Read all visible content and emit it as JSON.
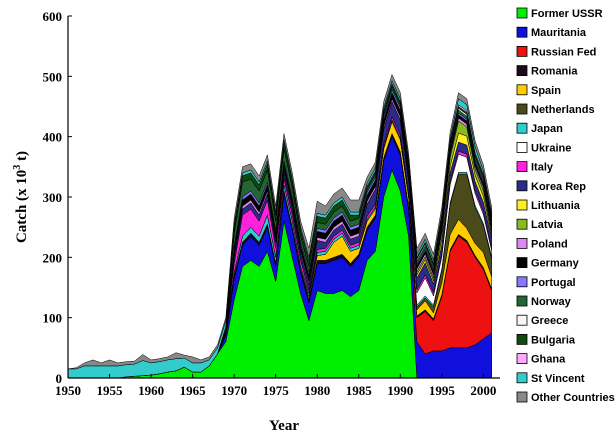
{
  "chart_data": {
    "type": "area",
    "stacked": true,
    "title": "",
    "xlabel": "Year",
    "ylabel": "Catch (x 10",
    "ylabel_sup": "3",
    "ylabel_tail": " t)",
    "xlim": [
      1950,
      2002
    ],
    "ylim": [
      0,
      600
    ],
    "xticks": [
      1950,
      1955,
      1960,
      1965,
      1970,
      1975,
      1980,
      1985,
      1990,
      1995,
      2000
    ],
    "yticks": [
      0,
      100,
      200,
      300,
      400,
      500,
      600
    ],
    "grid": false,
    "legend_position": "right",
    "x": [
      1950,
      1951,
      1952,
      1953,
      1954,
      1955,
      1956,
      1957,
      1958,
      1959,
      1960,
      1961,
      1962,
      1963,
      1964,
      1965,
      1966,
      1967,
      1968,
      1969,
      1970,
      1971,
      1972,
      1973,
      1974,
      1975,
      1976,
      1977,
      1978,
      1979,
      1980,
      1981,
      1982,
      1983,
      1984,
      1985,
      1986,
      1987,
      1988,
      1989,
      1990,
      1991,
      1992,
      1993,
      1994,
      1995,
      1996,
      1997,
      1998,
      1999,
      2000,
      2001
    ],
    "series": [
      {
        "name": "Former USSR",
        "color": "#00ee00",
        "values": [
          0,
          0,
          0,
          0,
          0,
          0,
          0,
          2,
          3,
          4,
          5,
          7,
          10,
          12,
          18,
          10,
          10,
          20,
          40,
          60,
          130,
          185,
          195,
          185,
          210,
          160,
          260,
          200,
          140,
          95,
          145,
          140,
          140,
          145,
          135,
          145,
          195,
          210,
          300,
          345,
          310,
          235,
          0,
          0,
          0,
          0,
          0,
          0,
          0,
          0,
          0,
          0
        ]
      },
      {
        "name": "Mauritania",
        "color": "#1010dd",
        "values": [
          0,
          0,
          0,
          0,
          0,
          0,
          0,
          0,
          0,
          0,
          0,
          0,
          0,
          0,
          0,
          0,
          0,
          0,
          0,
          10,
          35,
          35,
          40,
          35,
          40,
          25,
          45,
          45,
          35,
          30,
          45,
          50,
          55,
          55,
          50,
          55,
          50,
          55,
          60,
          55,
          60,
          45,
          60,
          40,
          45,
          45,
          50,
          50,
          50,
          55,
          65,
          75
        ]
      },
      {
        "name": "Russian Fed",
        "color": "#ee1111",
        "values": [
          0,
          0,
          0,
          0,
          0,
          0,
          0,
          0,
          0,
          0,
          0,
          0,
          0,
          0,
          0,
          0,
          0,
          0,
          0,
          0,
          0,
          0,
          0,
          0,
          0,
          0,
          0,
          0,
          0,
          0,
          0,
          0,
          0,
          0,
          0,
          0,
          0,
          0,
          0,
          0,
          0,
          0,
          40,
          70,
          50,
          90,
          160,
          185,
          175,
          145,
          115,
          70
        ]
      },
      {
        "name": "Romania",
        "color": "#1a0a1a",
        "values": [
          0,
          0,
          0,
          0,
          0,
          0,
          0,
          0,
          0,
          0,
          0,
          0,
          0,
          0,
          0,
          0,
          0,
          0,
          0,
          5,
          5,
          5,
          5,
          5,
          5,
          5,
          5,
          5,
          5,
          5,
          5,
          5,
          5,
          5,
          5,
          5,
          5,
          5,
          5,
          5,
          5,
          5,
          3,
          3,
          3,
          3,
          3,
          3,
          3,
          3,
          3,
          3
        ]
      },
      {
        "name": "Spain",
        "color": "#ffcc00",
        "values": [
          0,
          0,
          0,
          0,
          0,
          0,
          0,
          0,
          0,
          0,
          0,
          0,
          0,
          0,
          0,
          0,
          0,
          0,
          0,
          0,
          0,
          0,
          0,
          0,
          0,
          0,
          0,
          0,
          0,
          5,
          8,
          10,
          25,
          30,
          20,
          10,
          10,
          10,
          15,
          20,
          20,
          15,
          10,
          15,
          10,
          20,
          25,
          25,
          20,
          20,
          25,
          20
        ]
      },
      {
        "name": "Netherlands",
        "color": "#4a4a1a",
        "values": [
          0,
          0,
          0,
          0,
          0,
          0,
          0,
          0,
          0,
          0,
          0,
          0,
          0,
          0,
          0,
          0,
          0,
          0,
          0,
          0,
          0,
          0,
          0,
          0,
          0,
          0,
          0,
          0,
          0,
          0,
          0,
          0,
          0,
          0,
          0,
          0,
          0,
          0,
          0,
          0,
          0,
          0,
          5,
          5,
          10,
          20,
          50,
          75,
          90,
          60,
          45,
          30
        ]
      },
      {
        "name": "Japan",
        "color": "#33cccc",
        "values": [
          0,
          0,
          0,
          0,
          0,
          0,
          0,
          0,
          0,
          0,
          0,
          0,
          0,
          0,
          0,
          0,
          0,
          0,
          0,
          0,
          5,
          10,
          10,
          10,
          15,
          10,
          10,
          10,
          5,
          5,
          5,
          5,
          5,
          5,
          5,
          5,
          3,
          3,
          3,
          3,
          3,
          3,
          3,
          3,
          3,
          3,
          3,
          3,
          3,
          3,
          3,
          3
        ]
      },
      {
        "name": "Ukraine",
        "color": "#ffffff",
        "values": [
          0,
          0,
          0,
          0,
          0,
          0,
          0,
          0,
          0,
          0,
          0,
          0,
          0,
          0,
          0,
          0,
          0,
          0,
          0,
          0,
          0,
          0,
          0,
          0,
          0,
          0,
          0,
          0,
          0,
          0,
          0,
          0,
          0,
          0,
          0,
          0,
          0,
          0,
          0,
          0,
          0,
          0,
          20,
          30,
          15,
          20,
          30,
          30,
          25,
          20,
          15,
          10
        ]
      },
      {
        "name": "Italy",
        "color": "#ff22dd",
        "values": [
          0,
          0,
          0,
          0,
          0,
          0,
          0,
          0,
          0,
          0,
          0,
          0,
          0,
          0,
          0,
          0,
          0,
          0,
          0,
          0,
          15,
          35,
          30,
          25,
          25,
          15,
          10,
          10,
          10,
          5,
          5,
          5,
          5,
          5,
          5,
          5,
          5,
          5,
          5,
          5,
          5,
          5,
          5,
          5,
          5,
          5,
          5,
          5,
          5,
          5,
          5,
          5
        ]
      },
      {
        "name": "Korea Rep",
        "color": "#2b2b8a",
        "values": [
          0,
          0,
          0,
          0,
          0,
          0,
          0,
          0,
          0,
          0,
          0,
          0,
          0,
          0,
          0,
          0,
          0,
          0,
          0,
          0,
          10,
          10,
          10,
          10,
          10,
          10,
          10,
          10,
          10,
          10,
          15,
          10,
          10,
          10,
          10,
          10,
          20,
          25,
          25,
          25,
          25,
          20,
          20,
          20,
          15,
          15,
          15,
          15,
          15,
          15,
          15,
          15
        ]
      },
      {
        "name": "Lithuania",
        "color": "#ffee22",
        "values": [
          0,
          0,
          0,
          0,
          0,
          0,
          0,
          0,
          0,
          0,
          0,
          0,
          0,
          0,
          0,
          0,
          0,
          0,
          0,
          0,
          0,
          0,
          0,
          0,
          0,
          0,
          0,
          0,
          0,
          0,
          0,
          0,
          0,
          0,
          0,
          0,
          0,
          0,
          0,
          0,
          0,
          0,
          5,
          5,
          5,
          10,
          10,
          15,
          15,
          10,
          10,
          5
        ]
      },
      {
        "name": "Latvia",
        "color": "#88bb22",
        "values": [
          0,
          0,
          0,
          0,
          0,
          0,
          0,
          0,
          0,
          0,
          0,
          0,
          0,
          0,
          0,
          0,
          0,
          0,
          0,
          0,
          0,
          0,
          0,
          0,
          0,
          0,
          0,
          0,
          0,
          0,
          0,
          0,
          0,
          0,
          0,
          0,
          0,
          0,
          0,
          0,
          0,
          0,
          5,
          5,
          5,
          10,
          15,
          20,
          15,
          10,
          10,
          5
        ]
      },
      {
        "name": "Poland",
        "color": "#dd88ee",
        "values": [
          0,
          0,
          0,
          0,
          0,
          0,
          0,
          0,
          0,
          0,
          0,
          0,
          0,
          0,
          0,
          0,
          0,
          0,
          0,
          0,
          5,
          5,
          5,
          5,
          5,
          5,
          5,
          5,
          5,
          5,
          5,
          5,
          5,
          5,
          5,
          5,
          5,
          5,
          5,
          5,
          5,
          5,
          5,
          5,
          5,
          5,
          5,
          5,
          5,
          5,
          5,
          5
        ]
      },
      {
        "name": "Germany",
        "color": "#000000",
        "values": [
          0,
          0,
          0,
          0,
          0,
          0,
          0,
          0,
          0,
          0,
          0,
          0,
          0,
          0,
          0,
          0,
          0,
          0,
          0,
          5,
          10,
          10,
          10,
          10,
          10,
          10,
          10,
          10,
          10,
          10,
          10,
          10,
          10,
          10,
          10,
          10,
          10,
          10,
          10,
          10,
          10,
          10,
          5,
          5,
          5,
          5,
          5,
          5,
          5,
          5,
          5,
          5
        ]
      },
      {
        "name": "Portugal",
        "color": "#8877ff",
        "values": [
          0,
          0,
          0,
          0,
          0,
          0,
          0,
          0,
          0,
          0,
          0,
          0,
          0,
          0,
          0,
          0,
          0,
          0,
          0,
          0,
          5,
          5,
          5,
          5,
          5,
          5,
          5,
          5,
          5,
          5,
          5,
          5,
          5,
          5,
          5,
          5,
          5,
          5,
          5,
          5,
          5,
          5,
          3,
          3,
          3,
          3,
          3,
          3,
          3,
          3,
          3,
          3
        ]
      },
      {
        "name": "Norway",
        "color": "#226633",
        "values": [
          0,
          0,
          0,
          0,
          0,
          0,
          0,
          0,
          0,
          0,
          0,
          0,
          0,
          0,
          0,
          0,
          0,
          0,
          0,
          0,
          20,
          25,
          20,
          20,
          20,
          15,
          20,
          15,
          10,
          10,
          10,
          10,
          10,
          10,
          10,
          10,
          5,
          5,
          5,
          5,
          5,
          5,
          5,
          5,
          5,
          5,
          5,
          5,
          5,
          5,
          5,
          5
        ]
      },
      {
        "name": "Greece",
        "color": "#f8f8f8",
        "values": [
          0,
          0,
          0,
          0,
          0,
          0,
          0,
          0,
          0,
          0,
          0,
          0,
          0,
          0,
          0,
          0,
          0,
          0,
          0,
          0,
          0,
          0,
          0,
          0,
          0,
          0,
          0,
          0,
          0,
          0,
          0,
          0,
          0,
          0,
          0,
          0,
          0,
          0,
          0,
          0,
          0,
          0,
          3,
          3,
          3,
          3,
          3,
          3,
          3,
          3,
          3,
          3
        ]
      },
      {
        "name": "Bulgaria",
        "color": "#0f4a0f",
        "values": [
          0,
          0,
          0,
          0,
          0,
          0,
          0,
          0,
          0,
          0,
          0,
          0,
          0,
          0,
          0,
          0,
          0,
          0,
          0,
          5,
          10,
          10,
          10,
          10,
          10,
          10,
          10,
          10,
          10,
          10,
          10,
          10,
          10,
          10,
          10,
          5,
          5,
          5,
          5,
          5,
          5,
          5,
          3,
          3,
          3,
          3,
          3,
          3,
          3,
          3,
          3,
          3
        ]
      },
      {
        "name": "Ghana",
        "color": "#ffaaff",
        "values": [
          0,
          0,
          0,
          0,
          0,
          0,
          0,
          0,
          0,
          0,
          0,
          0,
          0,
          0,
          0,
          0,
          0,
          0,
          0,
          0,
          0,
          0,
          0,
          0,
          0,
          0,
          0,
          0,
          0,
          0,
          0,
          0,
          0,
          0,
          0,
          0,
          0,
          0,
          0,
          0,
          0,
          0,
          0,
          0,
          0,
          3,
          3,
          3,
          3,
          3,
          3,
          3
        ]
      },
      {
        "name": "St Vincent",
        "color": "#33cccc",
        "values": [
          15,
          15,
          20,
          20,
          20,
          20,
          20,
          20,
          20,
          25,
          20,
          20,
          20,
          20,
          15,
          15,
          15,
          10,
          10,
          10,
          5,
          5,
          5,
          5,
          5,
          5,
          5,
          5,
          5,
          5,
          5,
          5,
          5,
          5,
          5,
          5,
          5,
          5,
          5,
          5,
          5,
          5,
          5,
          5,
          5,
          5,
          5,
          10,
          10,
          10,
          5,
          5
        ]
      },
      {
        "name": "Other Countries",
        "color": "#888888",
        "values": [
          0,
          2,
          5,
          10,
          5,
          10,
          5,
          5,
          5,
          10,
          5,
          5,
          5,
          10,
          5,
          10,
          5,
          5,
          5,
          5,
          10,
          10,
          10,
          10,
          10,
          10,
          10,
          10,
          10,
          15,
          20,
          15,
          15,
          15,
          20,
          20,
          10,
          10,
          10,
          10,
          10,
          10,
          10,
          10,
          10,
          10,
          10,
          10,
          10,
          10,
          10,
          10
        ]
      }
    ]
  }
}
